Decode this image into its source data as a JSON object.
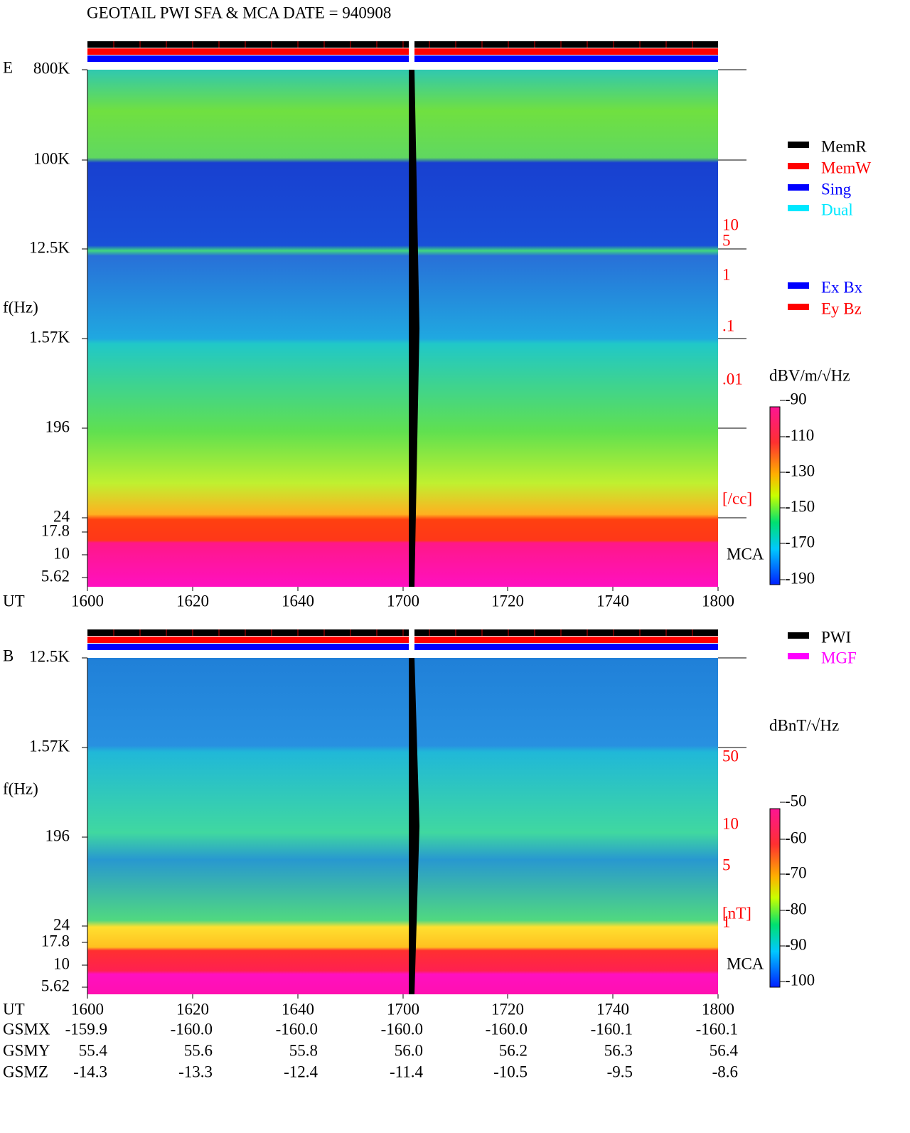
{
  "header": {
    "title": "GEOTAIL  PWI SFA & MCA   DATE = 940908"
  },
  "panels": [
    {
      "label": "E",
      "y_label": "f(Hz)",
      "y_ticks": [
        "800K",
        "100K",
        "12.5K",
        "1.57K",
        "196",
        "24",
        "17.8",
        "10",
        "5.62"
      ],
      "x_label": "UT",
      "x_ticks": [
        "1600",
        "1620",
        "1640",
        "1700",
        "1720",
        "1740",
        "1800"
      ],
      "right_labels": [
        "10",
        "5",
        "1",
        ".1",
        ".01",
        "[/cc]"
      ],
      "mca": "MCA",
      "colorbar": {
        "unit": "dBV/m/√Hz",
        "ticks": [
          "-90",
          "-110",
          "-130",
          "-150",
          "-170",
          "-190"
        ]
      },
      "legend": [
        {
          "name": "MemR",
          "color": "#000000"
        },
        {
          "name": "MemW",
          "color": "#ff0000"
        },
        {
          "name": "Sing",
          "color": "#0000ff"
        },
        {
          "name": "Dual",
          "color": "#00e8ff"
        },
        {
          "name": "Ex Bx",
          "color": "#0000ff"
        },
        {
          "name": "Ey Bz",
          "color": "#ff0000"
        }
      ]
    },
    {
      "label": "B",
      "y_label": "f(Hz)",
      "y_ticks": [
        "12.5K",
        "1.57K",
        "196",
        "24",
        "17.8",
        "10",
        "5.62"
      ],
      "x_label": "UT",
      "x_ticks": [
        "1600",
        "1620",
        "1640",
        "1700",
        "1720",
        "1740",
        "1800"
      ],
      "right_labels": [
        "50",
        "10",
        "5",
        "1",
        "[nT]"
      ],
      "mca": "MCA",
      "colorbar": {
        "unit": "dBnT/√Hz",
        "ticks": [
          "-50",
          "-60",
          "-70",
          "-80",
          "-90",
          "-100"
        ]
      },
      "legend": [
        {
          "name": "PWI",
          "color": "#000000"
        },
        {
          "name": "MGF",
          "color": "#ff00ff"
        }
      ]
    }
  ],
  "orbit": {
    "rows": [
      {
        "name": "GSMX",
        "values": [
          "-159.9",
          "-160.0",
          "-160.0",
          "-160.0",
          "-160.0",
          "-160.1",
          "-160.1"
        ]
      },
      {
        "name": "GSMY",
        "values": [
          "55.4",
          "55.6",
          "55.8",
          "56.0",
          "56.2",
          "56.3",
          "56.4"
        ]
      },
      {
        "name": "GSMZ",
        "values": [
          "-14.3",
          "-13.3",
          "-12.4",
          "-11.4",
          "-10.5",
          "-9.5",
          "-8.6"
        ]
      }
    ]
  }
}
